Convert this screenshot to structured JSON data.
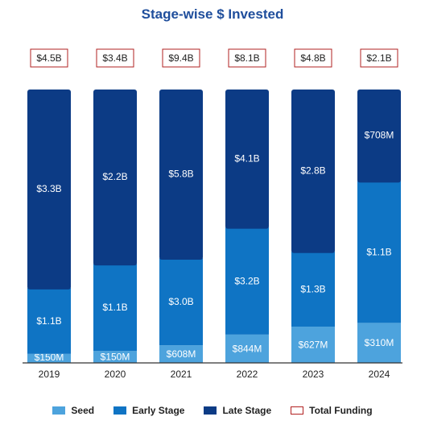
{
  "chart_data": {
    "type": "bar",
    "stacked": true,
    "title": "Stage-wise $ Invested",
    "categories": [
      "2019",
      "2020",
      "2021",
      "2022",
      "2023",
      "2024"
    ],
    "series": [
      {
        "name": "Seed",
        "color": "#4da3dd",
        "values": [
          0.15,
          0.15,
          0.608,
          0.844,
          0.627,
          0.31
        ],
        "labels": [
          "$150M",
          "$150M",
          "$608M",
          "$844M",
          "$627M",
          "$310M"
        ]
      },
      {
        "name": "Early Stage",
        "color": "#0f74c4",
        "values": [
          1.1,
          1.1,
          3.0,
          3.2,
          1.3,
          1.1
        ],
        "labels": [
          "$1.1B",
          "$1.1B",
          "$3.0B",
          "$3.2B",
          "$1.3B",
          "$1.1B"
        ]
      },
      {
        "name": "Late Stage",
        "color": "#0c3b85",
        "values": [
          3.3,
          2.2,
          5.8,
          4.1,
          2.8,
          0.708
        ],
        "labels": [
          "$3.3B",
          "$2.2B",
          "$5.8B",
          "$4.1B",
          "$2.8B",
          "$708M"
        ]
      }
    ],
    "totals": {
      "name": "Total Funding",
      "values": [
        4.5,
        3.4,
        9.4,
        8.1,
        4.8,
        2.1
      ],
      "labels": [
        "$4.5B",
        "$3.4B",
        "$9.4B",
        "$8.1B",
        "$4.8B",
        "$2.1B"
      ],
      "border_color": "#b22222"
    },
    "normalized_to_100_percent": true,
    "legend_position": "bottom",
    "grid": false
  }
}
